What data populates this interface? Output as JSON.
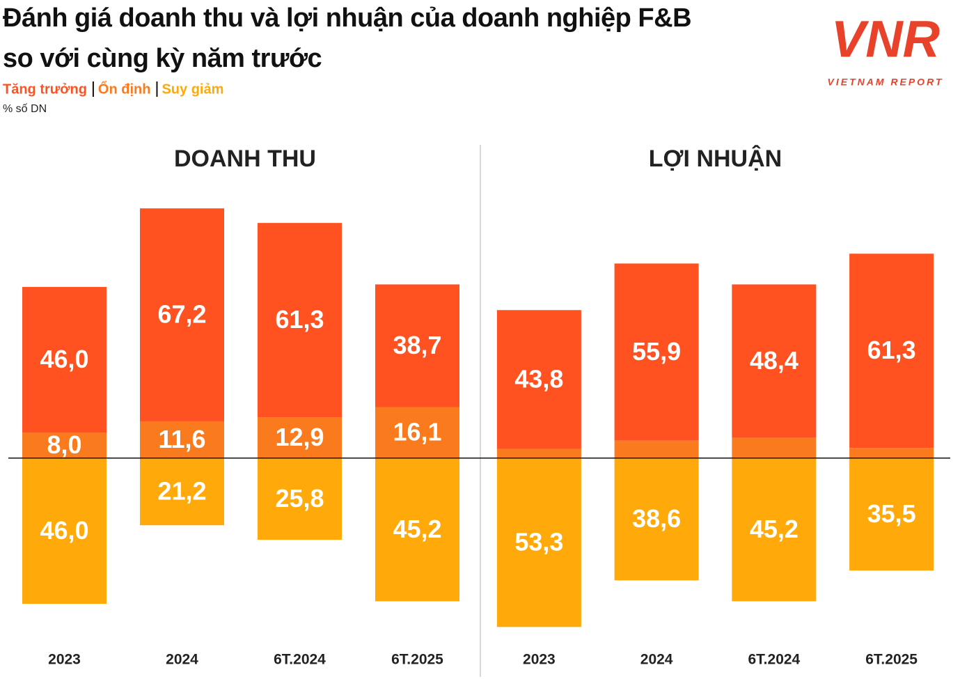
{
  "title": [
    "Đánh giá doanh thu và lợi nhuận của doanh nghiệp F&B",
    "so với cùng kỳ năm trước"
  ],
  "unit_label": "% số DN",
  "logo": {
    "mark": "VNR",
    "text": "VIETNAM REPORT"
  },
  "chart_data": [
    {
      "type": "diverging_bar",
      "title": "DOANH THU",
      "categories": [
        "2023",
        "2024",
        "6T.2024",
        "6T.2025"
      ],
      "ylim": [
        -55,
        85
      ],
      "series": [
        {
          "name": "Tăng trưởng",
          "color": "#ff5220",
          "values": [
            46.0,
            67.2,
            61.3,
            38.7
          ],
          "value_labels": [
            "46,0",
            "67,2",
            "61,3",
            "38,7"
          ]
        },
        {
          "name": "Ổn định",
          "color": "#fa7a1e",
          "values": [
            8.0,
            11.6,
            12.9,
            16.1
          ],
          "value_labels": [
            "8,0",
            "11,6",
            "12,9",
            "16,1"
          ]
        },
        {
          "name": "Suy giảm",
          "color": "#ffaa0a",
          "values": [
            46.0,
            21.2,
            25.8,
            45.2
          ],
          "value_labels": [
            "46,0",
            "21,2",
            "25,8",
            "45,2"
          ]
        }
      ]
    },
    {
      "type": "diverging_bar",
      "title": "LỢI NHUẬN",
      "categories": [
        "2023",
        "2024",
        "6T.2024",
        "6T.2025"
      ],
      "ylim": [
        -55,
        85
      ],
      "series": [
        {
          "name": "Tăng trưởng",
          "color": "#ff5220",
          "values": [
            43.8,
            55.9,
            48.4,
            61.3
          ],
          "value_labels": [
            "43,8",
            "55,9",
            "48,4",
            "61,3"
          ]
        },
        {
          "name": "Ổn định",
          "color": "#fa7a1e",
          "values": [
            2.9,
            5.5,
            6.4,
            3.2
          ]
        },
        {
          "name": "Suy giảm",
          "color": "#ffaa0a",
          "values": [
            53.3,
            38.6,
            45.2,
            35.5
          ],
          "value_labels": [
            "53,3",
            "38,6",
            "45,2",
            "35,5"
          ]
        }
      ]
    }
  ]
}
